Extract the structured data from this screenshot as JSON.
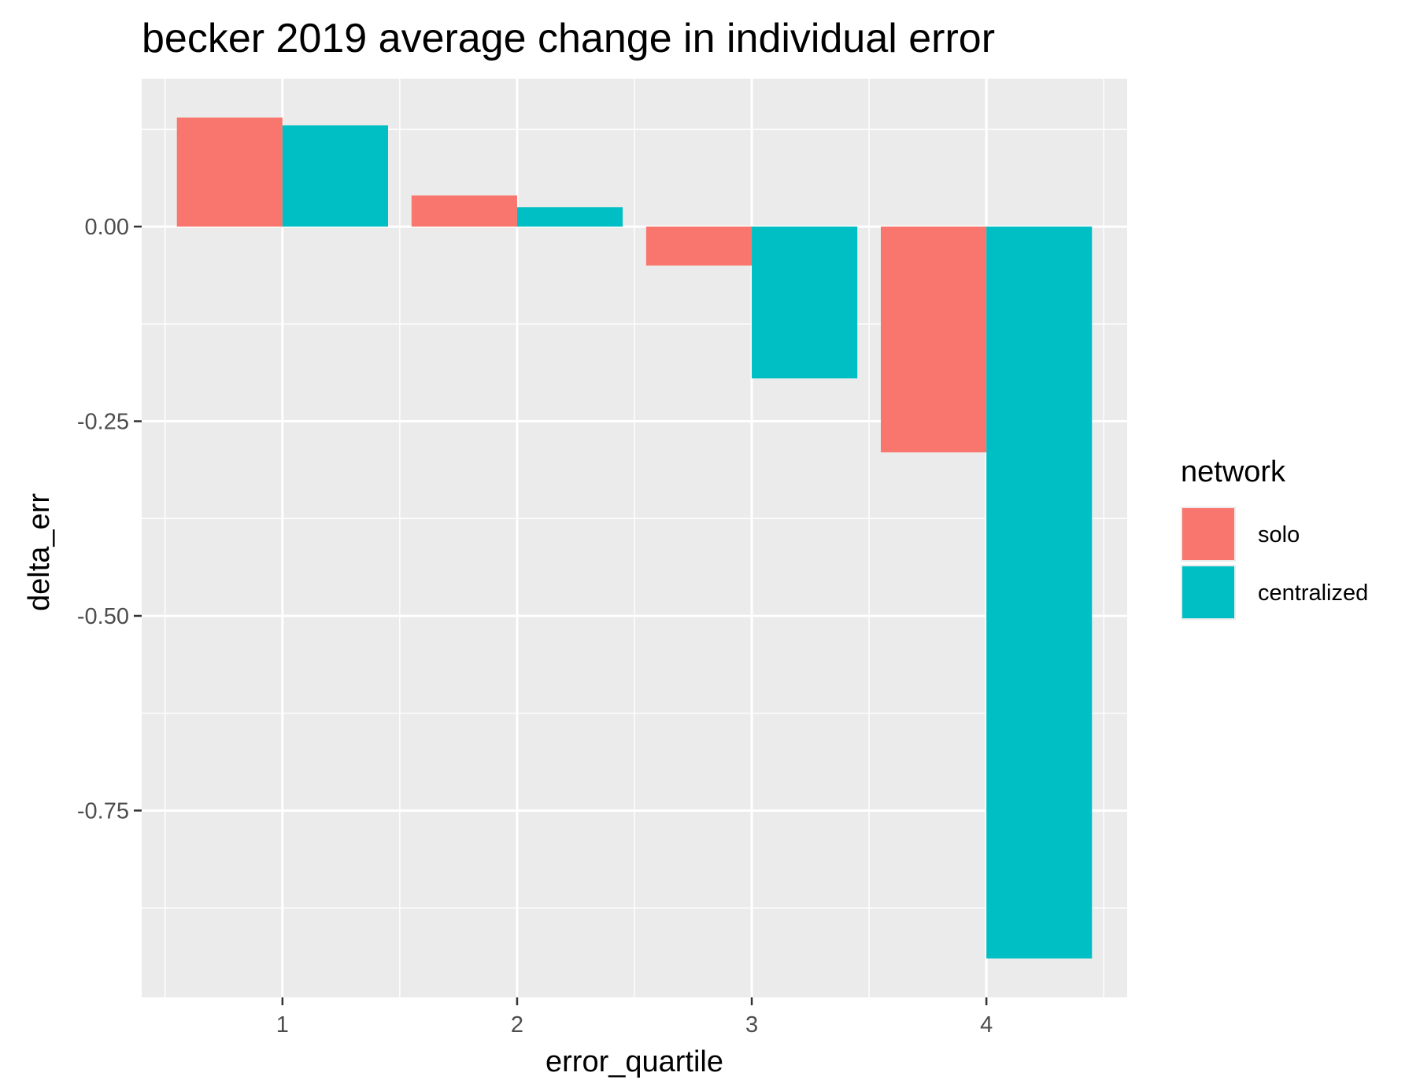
{
  "chart_data": {
    "type": "bar",
    "title": "becker 2019 average change in individual error",
    "xlabel": "error_quartile",
    "ylabel": "delta_err",
    "categories": [
      "1",
      "2",
      "3",
      "4"
    ],
    "series": [
      {
        "name": "solo",
        "color": "#F8766D",
        "values": [
          0.14,
          0.04,
          -0.05,
          -0.29
        ]
      },
      {
        "name": "centralized",
        "color": "#00BFC4",
        "values": [
          0.13,
          0.025,
          -0.195,
          -0.94
        ]
      }
    ],
    "ylim": [
      -0.99,
      0.19
    ],
    "yticks": [
      0.0,
      -0.25,
      -0.5,
      -0.75
    ],
    "ytick_labels": [
      "0.00",
      "-0.25",
      "-0.50",
      "-0.75"
    ],
    "grid": true,
    "panel_background": "#EBEBEB",
    "legend": {
      "title": "network",
      "placement": "right"
    }
  }
}
